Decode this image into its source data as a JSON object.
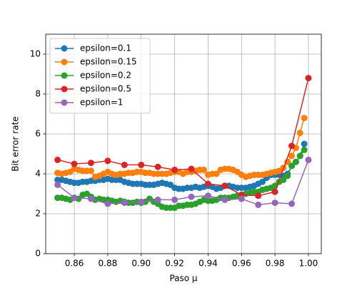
{
  "chart_data": {
    "type": "line",
    "xlabel": "Paso μ",
    "ylabel": "Bit error rate",
    "xlim": [
      0.8429,
      1.0077
    ],
    "ylim": [
      0,
      11
    ],
    "xticks": [
      0.86,
      0.88,
      {
        "value": 0.9,
        "label": "0.90"
      },
      0.92,
      0.94,
      0.96,
      0.98,
      {
        "value": 1.0,
        "label": "1.00"
      }
    ],
    "yticks": [
      0,
      2,
      4,
      6,
      8,
      10
    ],
    "grid": true,
    "legend": "upper left",
    "series": [
      {
        "name": "epsilon=0.1",
        "color": "#1f77b4",
        "x": [
          0.85,
          0.8525,
          0.855,
          0.8575,
          0.86,
          0.8625,
          0.865,
          0.8675,
          0.87,
          0.8725,
          0.875,
          0.8775,
          0.88,
          0.8825,
          0.885,
          0.8875,
          0.89,
          0.8925,
          0.895,
          0.8975,
          0.9,
          0.9025,
          0.905,
          0.9075,
          0.91,
          0.9125,
          0.915,
          0.9175,
          0.92,
          0.9225,
          0.925,
          0.9275,
          0.93,
          0.9325,
          0.935,
          0.9375,
          0.94,
          0.9425,
          0.945,
          0.9475,
          0.95,
          0.9525,
          0.955,
          0.9575,
          0.96,
          0.9625,
          0.965,
          0.9675,
          0.97,
          0.9725,
          0.975,
          0.9775,
          0.98,
          0.9825,
          0.985,
          0.9875,
          0.99,
          0.9925,
          0.995,
          0.9975
        ],
        "values": [
          3.7,
          3.7,
          3.65,
          3.6,
          3.55,
          3.55,
          3.6,
          3.6,
          3.65,
          3.65,
          3.7,
          3.7,
          3.75,
          3.7,
          3.7,
          3.7,
          3.6,
          3.55,
          3.5,
          3.5,
          3.5,
          3.45,
          3.45,
          3.45,
          3.5,
          3.55,
          3.5,
          3.45,
          3.3,
          3.25,
          3.25,
          3.3,
          3.3,
          3.35,
          3.3,
          3.35,
          3.4,
          3.35,
          3.25,
          3.3,
          3.4,
          3.4,
          3.35,
          3.3,
          3.3,
          3.3,
          3.35,
          3.4,
          3.5,
          3.6,
          3.8,
          3.95,
          3.95,
          3.95,
          3.9,
          4.0,
          4.4,
          4.6,
          4.9,
          5.5
        ]
      },
      {
        "name": "epsilon=0.15",
        "color": "#ff7f0e",
        "x": [
          0.85,
          0.8525,
          0.855,
          0.8575,
          0.86,
          0.8625,
          0.865,
          0.8675,
          0.87,
          0.8725,
          0.875,
          0.8775,
          0.88,
          0.8825,
          0.885,
          0.8875,
          0.89,
          0.8925,
          0.895,
          0.8975,
          0.9,
          0.9025,
          0.905,
          0.9075,
          0.91,
          0.9125,
          0.915,
          0.9175,
          0.92,
          0.9225,
          0.925,
          0.9275,
          0.93,
          0.9325,
          0.935,
          0.9375,
          0.94,
          0.9425,
          0.945,
          0.9475,
          0.95,
          0.9525,
          0.955,
          0.9575,
          0.96,
          0.9625,
          0.965,
          0.9675,
          0.97,
          0.9725,
          0.975,
          0.9775,
          0.98,
          0.9825,
          0.985,
          0.9875,
          0.99,
          0.9925,
          0.995,
          0.9975
        ],
        "values": [
          4.05,
          4.0,
          4.05,
          4.1,
          4.25,
          4.2,
          4.15,
          4.15,
          4.15,
          3.85,
          3.9,
          4.0,
          4.1,
          4.0,
          3.95,
          4.0,
          4.0,
          4.05,
          4.05,
          4.1,
          4.1,
          4.05,
          4.05,
          4.0,
          4.0,
          4.0,
          4.0,
          4.05,
          4.1,
          4.1,
          4.0,
          4.1,
          4.1,
          4.15,
          4.2,
          4.2,
          3.95,
          4.0,
          4.0,
          4.2,
          4.25,
          4.25,
          4.2,
          4.1,
          3.95,
          3.85,
          3.9,
          3.95,
          3.95,
          3.95,
          4.0,
          4.05,
          4.1,
          4.15,
          4.3,
          4.6,
          4.9,
          5.3,
          6.05,
          6.8
        ]
      },
      {
        "name": "epsilon=0.2",
        "color": "#2ca02c",
        "x": [
          0.85,
          0.8525,
          0.855,
          0.8575,
          0.86,
          0.8625,
          0.865,
          0.8675,
          0.87,
          0.8725,
          0.875,
          0.8775,
          0.88,
          0.8825,
          0.885,
          0.8875,
          0.89,
          0.8925,
          0.895,
          0.8975,
          0.9,
          0.9025,
          0.905,
          0.9075,
          0.91,
          0.9125,
          0.915,
          0.9175,
          0.92,
          0.9225,
          0.925,
          0.9275,
          0.93,
          0.9325,
          0.935,
          0.9375,
          0.94,
          0.9425,
          0.945,
          0.9475,
          0.95,
          0.9525,
          0.955,
          0.9575,
          0.96,
          0.9625,
          0.965,
          0.9675,
          0.97,
          0.9725,
          0.975,
          0.9775,
          0.98,
          0.9825,
          0.985,
          0.9875,
          0.99,
          0.9925,
          0.995,
          0.9975
        ],
        "values": [
          2.8,
          2.8,
          2.75,
          2.7,
          2.8,
          2.75,
          2.95,
          3.0,
          2.85,
          2.7,
          2.75,
          2.7,
          2.7,
          2.65,
          2.6,
          2.65,
          2.6,
          2.55,
          2.55,
          2.6,
          2.55,
          2.6,
          2.75,
          2.6,
          2.5,
          2.35,
          2.3,
          2.3,
          2.3,
          2.4,
          2.4,
          2.45,
          2.45,
          2.5,
          2.6,
          2.7,
          2.65,
          2.65,
          2.7,
          2.8,
          2.8,
          2.8,
          2.85,
          2.9,
          2.95,
          3.0,
          3.05,
          3.1,
          3.1,
          3.2,
          3.25,
          3.3,
          3.4,
          3.6,
          3.7,
          3.9,
          4.4,
          4.6,
          4.9,
          5.2
        ]
      },
      {
        "name": "epsilon=0.5",
        "color": "#d62728",
        "x": [
          0.85,
          0.86,
          0.87,
          0.88,
          0.89,
          0.9,
          0.91,
          0.92,
          0.93,
          0.94,
          0.95,
          0.96,
          0.97,
          0.98,
          0.99,
          1.0
        ],
        "values": [
          4.7,
          4.5,
          4.55,
          4.65,
          4.45,
          4.45,
          4.35,
          4.2,
          4.25,
          3.5,
          3.4,
          2.95,
          2.9,
          3.1,
          5.4,
          8.8
        ]
      },
      {
        "name": "epsilon=1",
        "color": "#9467bd",
        "x": [
          0.85,
          0.86,
          0.87,
          0.88,
          0.89,
          0.9,
          0.91,
          0.92,
          0.93,
          0.94,
          0.95,
          0.96,
          0.97,
          0.98,
          0.99,
          1.0
        ],
        "values": [
          3.45,
          2.8,
          2.75,
          2.5,
          2.55,
          2.6,
          2.7,
          2.7,
          2.85,
          2.9,
          2.7,
          2.75,
          2.45,
          2.55,
          2.5,
          4.7
        ]
      }
    ]
  }
}
